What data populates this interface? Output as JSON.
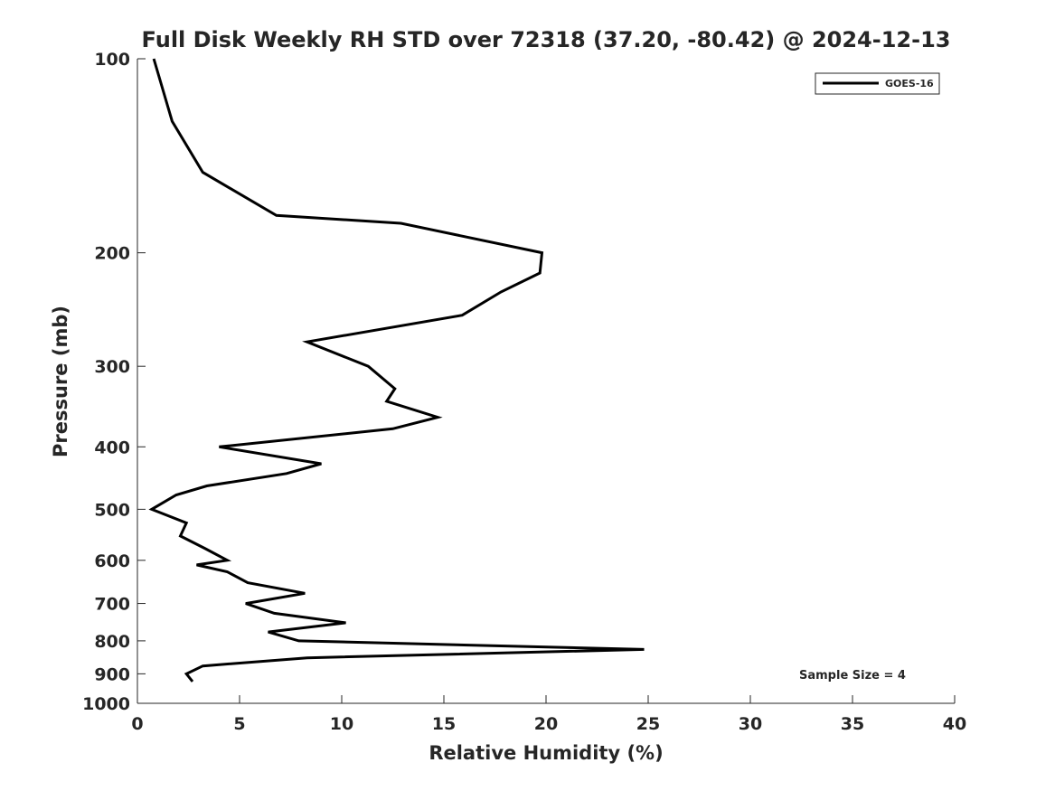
{
  "chart_data": {
    "type": "line",
    "title": "Full Disk Weekly RH STD over 72318 (37.20, -80.42) @ 2024-12-13",
    "xlabel": "Relative Humidity (%)",
    "ylabel": "Pressure (mb)",
    "xlim": [
      0,
      40
    ],
    "ylim": [
      100,
      1000
    ],
    "yscale": "log",
    "yreversed": true,
    "xticks": [
      0,
      5,
      10,
      15,
      20,
      25,
      30,
      35,
      40
    ],
    "yticks": [
      100,
      200,
      300,
      400,
      500,
      600,
      700,
      800,
      900,
      1000
    ],
    "legend_position": "top-right",
    "annotation": "Sample Size = 4",
    "series": [
      {
        "name": "GOES-16",
        "color": "#000000",
        "points": [
          {
            "rh": 0.8,
            "p": 100
          },
          {
            "rh": 1.7,
            "p": 125
          },
          {
            "rh": 3.2,
            "p": 150
          },
          {
            "rh": 6.8,
            "p": 175
          },
          {
            "rh": 12.9,
            "p": 180
          },
          {
            "rh": 19.8,
            "p": 200
          },
          {
            "rh": 19.7,
            "p": 215
          },
          {
            "rh": 17.8,
            "p": 230
          },
          {
            "rh": 15.9,
            "p": 250
          },
          {
            "rh": 8.3,
            "p": 275
          },
          {
            "rh": 11.3,
            "p": 300
          },
          {
            "rh": 12.6,
            "p": 325
          },
          {
            "rh": 12.2,
            "p": 340
          },
          {
            "rh": 14.7,
            "p": 360
          },
          {
            "rh": 12.5,
            "p": 375
          },
          {
            "rh": 4.0,
            "p": 400
          },
          {
            "rh": 9.0,
            "p": 425
          },
          {
            "rh": 7.3,
            "p": 440
          },
          {
            "rh": 3.4,
            "p": 460
          },
          {
            "rh": 1.9,
            "p": 475
          },
          {
            "rh": 0.7,
            "p": 500
          },
          {
            "rh": 2.4,
            "p": 525
          },
          {
            "rh": 2.1,
            "p": 550
          },
          {
            "rh": 3.3,
            "p": 575
          },
          {
            "rh": 4.4,
            "p": 600
          },
          {
            "rh": 2.9,
            "p": 610
          },
          {
            "rh": 4.4,
            "p": 625
          },
          {
            "rh": 5.4,
            "p": 650
          },
          {
            "rh": 8.2,
            "p": 675
          },
          {
            "rh": 5.3,
            "p": 700
          },
          {
            "rh": 6.7,
            "p": 725
          },
          {
            "rh": 10.2,
            "p": 750
          },
          {
            "rh": 6.4,
            "p": 775
          },
          {
            "rh": 7.9,
            "p": 800
          },
          {
            "rh": 24.8,
            "p": 825
          },
          {
            "rh": 8.3,
            "p": 850
          },
          {
            "rh": 3.2,
            "p": 875
          },
          {
            "rh": 2.4,
            "p": 900
          },
          {
            "rh": 2.7,
            "p": 925
          }
        ]
      }
    ]
  }
}
